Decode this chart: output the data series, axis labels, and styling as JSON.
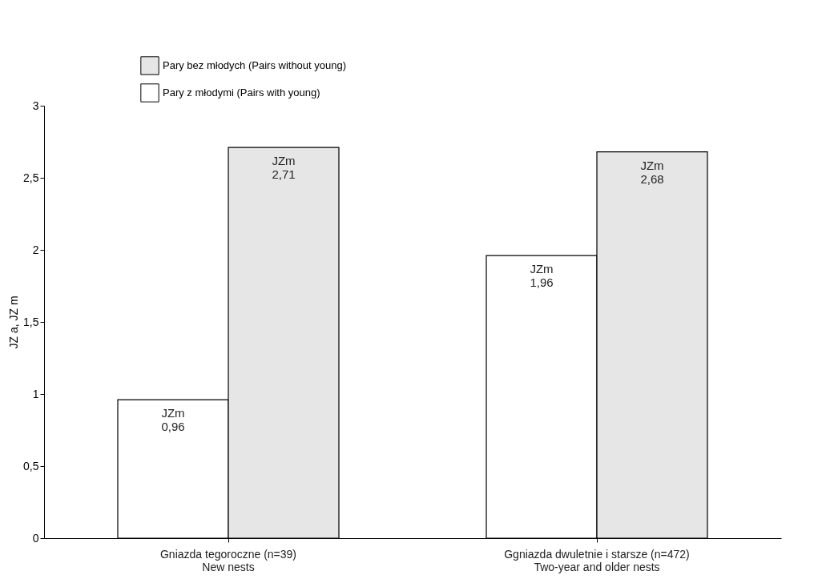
{
  "chart_data": {
    "type": "bar",
    "ylabel": "JZ a, JZ m",
    "categories": [
      "Gniazda tegoroczne (n=39)\nNew nests",
      "Ggniazda dwuletnie i starsze (n=472)\nTwo-year and older nests"
    ],
    "series": [
      {
        "name": "Pary z młodymi  (Pairs with young)",
        "color": "#ffffff",
        "values": [
          0.96,
          1.96
        ],
        "value_labels": [
          "JZm\n0,96",
          "JZm\n1,96"
        ]
      },
      {
        "name": "Pary bez młodych  (Pairs without young)",
        "color": "#e6e6e6",
        "values": [
          2.71,
          2.68
        ],
        "value_labels": [
          "JZm\n2,71",
          "JZm\n2,68"
        ]
      }
    ],
    "ylim": [
      0,
      3
    ],
    "yticks": [
      0,
      {
        "value": 0.5,
        "label": "0,5"
      },
      1,
      {
        "value": 1.5,
        "label": "1,5"
      },
      2,
      {
        "value": 2.5,
        "label": "2,5"
      },
      3
    ],
    "grid": false,
    "legend": "top"
  }
}
